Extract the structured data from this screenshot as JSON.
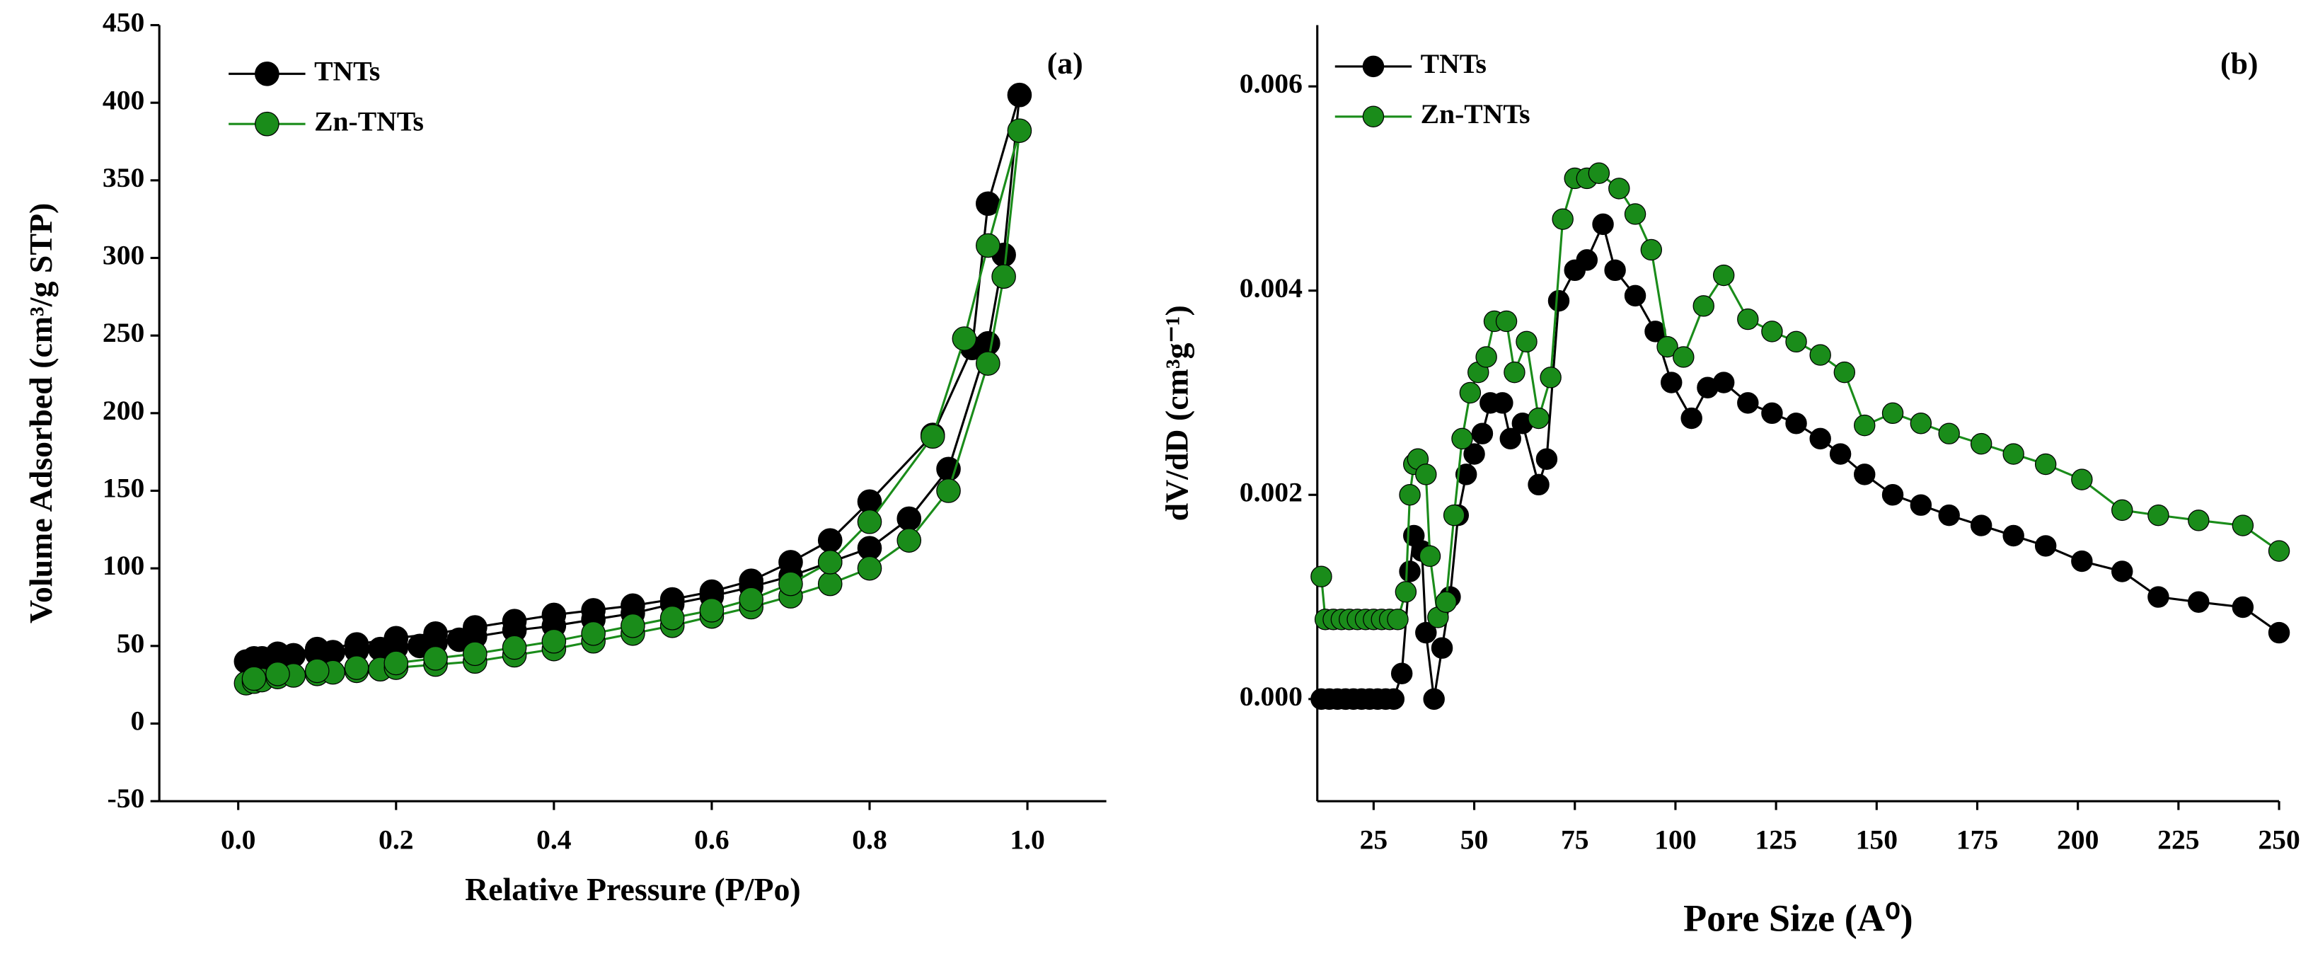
{
  "chart_data": [
    {
      "type": "line",
      "title": "(a)",
      "x_label": "Relative Pressure (P/Po)",
      "y_label": "Volume Adsorbed (cm³/g STP)",
      "xlim": [
        -0.1,
        1.1
      ],
      "ylim": [
        -50,
        450
      ],
      "xticks": [
        {
          "value": 0,
          "label": "0.0"
        },
        0.2,
        0.4,
        0.6,
        0.8,
        {
          "value": 1,
          "label": "1.0"
        }
      ],
      "yticks": [
        -50,
        0,
        50,
        100,
        150,
        200,
        250,
        300,
        350,
        400,
        450
      ],
      "legend": "upper left",
      "series": [
        {
          "name": "TNTs",
          "color": "#000000",
          "x": [
            0.01,
            0.02,
            0.03,
            0.05,
            0.07,
            0.1,
            0.12,
            0.15,
            0.18,
            0.2,
            0.23,
            0.25,
            0.28,
            0.3,
            0.35,
            0.4,
            0.45,
            0.5,
            0.55,
            0.6,
            0.65,
            0.7,
            0.75,
            0.8,
            0.85,
            0.9,
            0.95,
            0.97,
            0.99,
            0.95,
            0.93,
            0.88,
            0.8,
            0.75,
            0.7,
            0.65,
            0.6,
            0.55,
            0.5,
            0.45,
            0.4,
            0.35,
            0.3,
            0.25,
            0.2,
            0.15,
            0.1,
            0.05,
            0.02
          ],
          "values": [
            40,
            41,
            42,
            43,
            44,
            45,
            46,
            47,
            48,
            49,
            50,
            52,
            54,
            56,
            60,
            63,
            67,
            71,
            77,
            82,
            88,
            95,
            104,
            113,
            132,
            164,
            245,
            302,
            405,
            335,
            242,
            186,
            143,
            118,
            104,
            92,
            85,
            80,
            76,
            73,
            70,
            66,
            62,
            58,
            55,
            51,
            48,
            45,
            42
          ]
        },
        {
          "name": "Zn-TNTs",
          "color": "#1a8c1a",
          "x": [
            0.01,
            0.02,
            0.03,
            0.05,
            0.07,
            0.1,
            0.12,
            0.15,
            0.18,
            0.2,
            0.25,
            0.3,
            0.35,
            0.4,
            0.45,
            0.5,
            0.55,
            0.6,
            0.65,
            0.7,
            0.75,
            0.8,
            0.85,
            0.9,
            0.95,
            0.97,
            0.99,
            0.95,
            0.92,
            0.88,
            0.8,
            0.75,
            0.7,
            0.65,
            0.6,
            0.55,
            0.5,
            0.45,
            0.4,
            0.35,
            0.3,
            0.25,
            0.2,
            0.15,
            0.1,
            0.05,
            0.02
          ],
          "values": [
            26,
            27,
            28,
            30,
            31,
            32,
            33,
            34,
            35,
            36,
            38,
            40,
            44,
            48,
            53,
            58,
            63,
            69,
            75,
            82,
            90,
            100,
            118,
            150,
            232,
            288,
            382,
            308,
            248,
            185,
            130,
            104,
            90,
            80,
            73,
            68,
            63,
            58,
            53,
            49,
            45,
            42,
            39,
            36,
            34,
            32,
            29
          ]
        }
      ]
    },
    {
      "type": "line",
      "title": "(b)",
      "x_label": "Pore Size (A⁰)",
      "y_label": "dV/dD (cm³g⁻¹)",
      "xlim": [
        11,
        250
      ],
      "ylim": [
        -0.001,
        0.0066
      ],
      "xticks": [
        25,
        50,
        75,
        100,
        125,
        150,
        175,
        200,
        225,
        250
      ],
      "yticks": [
        {
          "value": 0,
          "label": "0.000"
        },
        {
          "value": 0.002,
          "label": "0.002"
        },
        {
          "value": 0.004,
          "label": "0.004"
        },
        {
          "value": 0.006,
          "label": "0.006"
        }
      ],
      "legend": "upper left",
      "series": [
        {
          "name": "TNTs",
          "color": "#000000",
          "x": [
            12,
            14,
            16,
            18,
            20,
            22,
            24,
            26,
            28,
            30,
            32,
            34,
            35,
            37,
            38,
            40,
            42,
            44,
            46,
            48,
            50,
            52,
            54,
            57,
            59,
            62,
            66,
            68,
            71,
            75,
            78,
            82,
            85,
            90,
            95,
            99,
            104,
            108,
            112,
            118,
            124,
            130,
            136,
            141,
            147,
            154,
            161,
            168,
            176,
            184,
            192,
            201,
            211,
            220,
            230,
            241,
            250
          ],
          "values": [
            0,
            0,
            0,
            0,
            0,
            0,
            0,
            0,
            0,
            0,
            0.00025,
            0.00125,
            0.0016,
            0.00145,
            0.00065,
            0,
            0.0005,
            0.001,
            0.0018,
            0.0022,
            0.0024,
            0.0026,
            0.0029,
            0.0029,
            0.00255,
            0.0027,
            0.0021,
            0.00235,
            0.0039,
            0.0042,
            0.0043,
            0.00465,
            0.0042,
            0.00395,
            0.0036,
            0.0031,
            0.00275,
            0.00305,
            0.0031,
            0.0029,
            0.0028,
            0.0027,
            0.00255,
            0.0024,
            0.0022,
            0.002,
            0.0019,
            0.0018,
            0.0017,
            0.0016,
            0.0015,
            0.00135,
            0.00125,
            0.001,
            0.00095,
            0.0009,
            0.00065
          ]
        },
        {
          "name": "Zn-TNTs",
          "color": "#1a8c1a",
          "x": [
            12,
            13,
            15,
            17,
            19,
            21,
            23,
            25,
            27,
            29,
            31,
            33,
            34,
            35,
            36,
            38,
            39,
            41,
            43,
            45,
            47,
            49,
            51,
            53,
            55,
            58,
            60,
            63,
            66,
            69,
            72,
            75,
            78,
            81,
            86,
            90,
            94,
            98,
            102,
            107,
            112,
            118,
            124,
            130,
            136,
            142,
            147,
            154,
            161,
            168,
            176,
            184,
            192,
            201,
            211,
            220,
            230,
            241,
            250
          ],
          "values": [
            0.0012,
            0.00078,
            0.00078,
            0.00078,
            0.00078,
            0.00078,
            0.00078,
            0.00078,
            0.00078,
            0.00078,
            0.00078,
            0.00105,
            0.002,
            0.0023,
            0.00235,
            0.0022,
            0.0014,
            0.0008,
            0.00095,
            0.0018,
            0.00255,
            0.003,
            0.0032,
            0.00335,
            0.0037,
            0.0037,
            0.0032,
            0.0035,
            0.00275,
            0.00315,
            0.0047,
            0.0051,
            0.0051,
            0.00515,
            0.005,
            0.00475,
            0.0044,
            0.00345,
            0.00335,
            0.00385,
            0.00415,
            0.00372,
            0.0036,
            0.0035,
            0.00337,
            0.0032,
            0.00268,
            0.0028,
            0.0027,
            0.0026,
            0.0025,
            0.0024,
            0.0023,
            0.00215,
            0.00185,
            0.0018,
            0.00175,
            0.0017,
            0.00145
          ]
        }
      ]
    }
  ]
}
